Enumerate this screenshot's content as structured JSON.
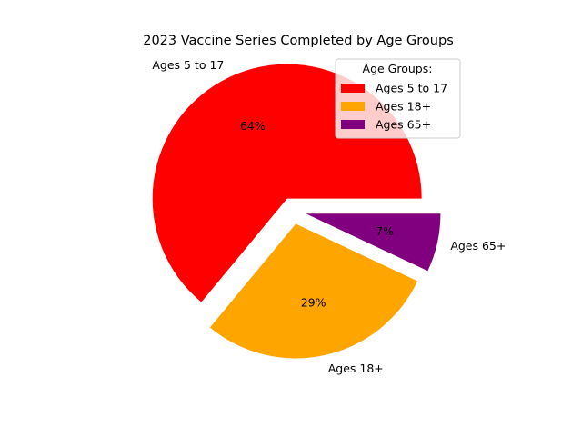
{
  "chart_data": {
    "type": "pie",
    "title": "2023 Vaccine Series Completed by Age Groups",
    "slices": [
      {
        "label": "Ages 5 to 17",
        "value": 64,
        "pct_label": "64%",
        "color": "#ff0000",
        "explode": true
      },
      {
        "label": "Ages 18+",
        "value": 29,
        "pct_label": "29%",
        "color": "#ffa500",
        "explode": true
      },
      {
        "label": "Ages 65+",
        "value": 7,
        "pct_label": "7%",
        "color": "#800080",
        "explode": true
      }
    ],
    "legend": {
      "title": "Age Groups:",
      "position": "upper-right",
      "entries": [
        "Ages 5 to 17",
        "Ages 18+",
        "Ages 65+"
      ]
    }
  }
}
